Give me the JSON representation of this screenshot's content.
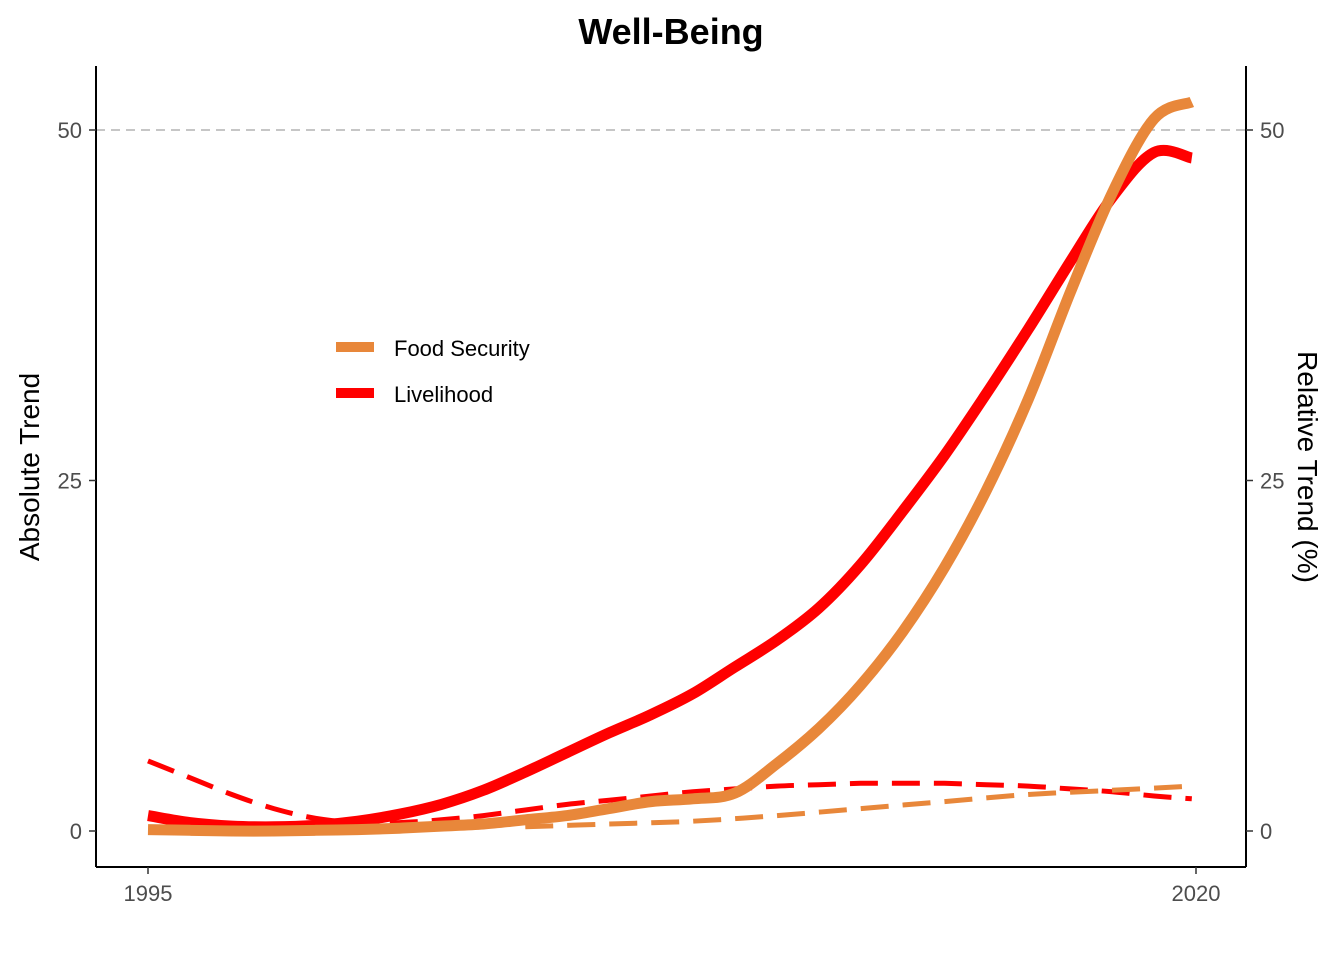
{
  "chart_data": {
    "type": "line",
    "title": "Well-Being",
    "ylabel": "Absolute Trend",
    "y2label": "Relative Trend (%)",
    "xlabel": "",
    "xlim": [
      1995,
      2020
    ],
    "ylim": [
      0,
      50
    ],
    "x_ticks": [
      1995,
      2020
    ],
    "y_ticks": [
      0,
      25,
      50
    ],
    "y2_ticks": [
      0,
      25,
      50
    ],
    "reference_line": 50,
    "legend_position": "upper-left-inside",
    "grid": false,
    "series": [
      {
        "name": "Food Security",
        "color": "#E8873A",
        "style": "solid",
        "x": [
          1995,
          1996,
          1997,
          1998,
          1999,
          2000,
          2001,
          2002,
          2003,
          2004,
          2005,
          2006,
          2007,
          2008,
          2009,
          2010,
          2011,
          2012,
          2013,
          2014,
          2015,
          2016,
          2017,
          2018,
          2019,
          2019.9
        ],
        "values": [
          0.1,
          0.05,
          0.0,
          0.0,
          0.05,
          0.1,
          0.2,
          0.35,
          0.5,
          0.8,
          1.1,
          1.6,
          2.1,
          2.3,
          2.7,
          4.8,
          7.3,
          10.4,
          14.2,
          18.8,
          24.3,
          30.8,
          38.4,
          45.5,
          50.8,
          52.0
        ]
      },
      {
        "name": "Livelihood",
        "color": "#FF0000",
        "style": "solid",
        "x": [
          1995,
          1996,
          1997,
          1998,
          1999,
          2000,
          2001,
          2002,
          2003,
          2004,
          2005,
          2006,
          2007,
          2008,
          2009,
          2010,
          2011,
          2012,
          2013,
          2014,
          2015,
          2016,
          2017,
          2018,
          2019,
          2019.9
        ],
        "values": [
          1.1,
          0.6,
          0.35,
          0.3,
          0.4,
          0.7,
          1.2,
          1.9,
          2.9,
          4.2,
          5.6,
          7.0,
          8.3,
          9.8,
          11.7,
          13.6,
          15.9,
          19.0,
          22.8,
          26.8,
          31.2,
          35.8,
          40.6,
          45.2,
          48.4,
          48.0
        ]
      },
      {
        "name": "",
        "color": "#E8873A",
        "style": "dashed",
        "axis": "right",
        "x": [
          2004,
          2006,
          2008,
          2010,
          2012,
          2014,
          2016,
          2018,
          2019.9
        ],
        "values": [
          0.3,
          0.5,
          0.7,
          1.1,
          1.6,
          2.1,
          2.6,
          2.9,
          3.2
        ]
      },
      {
        "name": "",
        "color": "#FF0000",
        "style": "dashed",
        "axis": "right",
        "x": [
          1995,
          1996,
          1997,
          1998,
          1999,
          2000,
          2001,
          2002,
          2003,
          2004,
          2005,
          2006,
          2007,
          2008,
          2009,
          2010,
          2011,
          2012,
          2013,
          2014,
          2015,
          2016,
          2017,
          2018,
          2019,
          2019.9
        ],
        "values": [
          5.0,
          3.8,
          2.6,
          1.6,
          0.9,
          0.6,
          0.6,
          0.8,
          1.1,
          1.5,
          1.9,
          2.2,
          2.5,
          2.8,
          3.0,
          3.2,
          3.3,
          3.4,
          3.4,
          3.4,
          3.3,
          3.2,
          3.0,
          2.8,
          2.5,
          2.3
        ]
      }
    ]
  }
}
